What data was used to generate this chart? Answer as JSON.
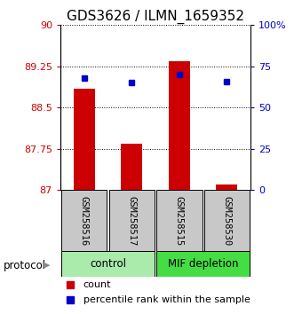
{
  "title": "GDS3626 / ILMN_1659352",
  "samples": [
    "GSM258516",
    "GSM258517",
    "GSM258515",
    "GSM258530"
  ],
  "groups": [
    "control",
    "control",
    "MIF depletion",
    "MIF depletion"
  ],
  "bar_values": [
    88.85,
    87.85,
    89.35,
    87.1
  ],
  "bar_base": 87.0,
  "percentile_values": [
    68,
    65,
    70,
    66
  ],
  "ylim_left": [
    87,
    90
  ],
  "ylim_right": [
    0,
    100
  ],
  "yticks_left": [
    87,
    87.75,
    88.5,
    89.25,
    90
  ],
  "yticks_right": [
    0,
    25,
    50,
    75,
    100
  ],
  "ytick_labels_left": [
    "87",
    "87.75",
    "88.5",
    "89.25",
    "90"
  ],
  "ytick_labels_right": [
    "0",
    "25",
    "50",
    "75",
    "100%"
  ],
  "bar_color": "#cc0000",
  "percentile_color": "#0000cc",
  "group_colors": {
    "control": "#aaeaaa",
    "MIF depletion": "#44dd44"
  },
  "protocol_label": "protocol",
  "legend_items": [
    {
      "label": "count",
      "color": "#cc0000"
    },
    {
      "label": "percentile rank within the sample",
      "color": "#0000cc"
    }
  ],
  "tick_color_left": "#cc0000",
  "tick_color_right": "#0000cc",
  "bar_width": 0.45,
  "group_spans": [
    {
      "name": "control",
      "start": 0,
      "end": 1
    },
    {
      "name": "MIF depletion",
      "start": 2,
      "end": 3
    }
  ]
}
